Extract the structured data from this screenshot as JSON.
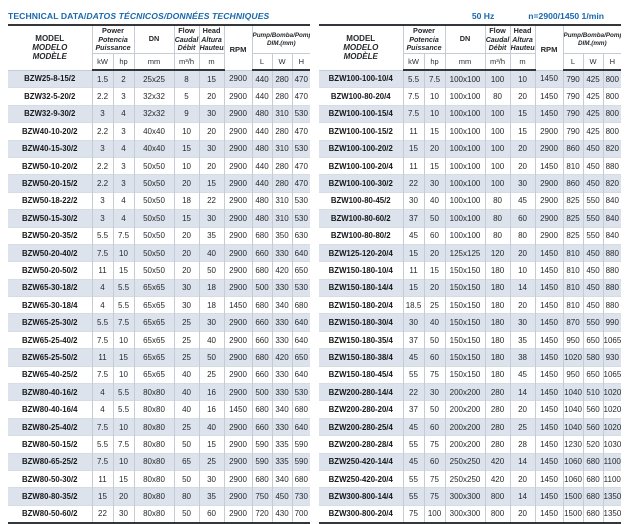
{
  "page": {
    "title_en": "TECHNICAL DATA/",
    "title_intl": "DATOS TÉCNICOS/DONNÉES TECHNIQUES",
    "frequency": "50 Hz",
    "speed": "n=2900/1450 1/min",
    "accent_color": "#1769ae",
    "stripe_color": "#dce3ec"
  },
  "header": {
    "model": [
      "MODEL",
      "MODELO",
      "MODÈLE"
    ],
    "power": [
      "Power",
      "Potencia",
      "Puissance"
    ],
    "flow": [
      "Flow",
      "Caudal",
      "Débit"
    ],
    "head": [
      "Head",
      "Altura",
      "Hauteur"
    ],
    "dn": "DN",
    "rpm": "RPM",
    "dim": [
      "Pump/Bomba/Pompe",
      "DIM.(mm)"
    ],
    "units": {
      "kw": "kW",
      "hp": "hp",
      "dn": "mm",
      "flow": "m³/h",
      "head": "m",
      "dim_l": "L",
      "dim_w": "W",
      "dim_h": "H"
    }
  },
  "tables": [
    {
      "rows": [
        [
          "BZW25-8-15/2",
          "1.5",
          "2",
          "25x25",
          "8",
          "15",
          "2900",
          "440",
          "280",
          "470"
        ],
        [
          "BZW32-5-20/2",
          "2.2",
          "3",
          "32x32",
          "5",
          "20",
          "2900",
          "440",
          "280",
          "470"
        ],
        [
          "BZW32-9-30/2",
          "3",
          "4",
          "32x32",
          "9",
          "30",
          "2900",
          "480",
          "310",
          "530"
        ],
        [
          "BZW40-10-20/2",
          "2.2",
          "3",
          "40x40",
          "10",
          "20",
          "2900",
          "440",
          "280",
          "470"
        ],
        [
          "BZW40-15-30/2",
          "3",
          "4",
          "40x40",
          "15",
          "30",
          "2900",
          "480",
          "310",
          "530"
        ],
        [
          "BZW50-10-20/2",
          "2.2",
          "3",
          "50x50",
          "10",
          "20",
          "2900",
          "440",
          "280",
          "470"
        ],
        [
          "BZW50-20-15/2",
          "2.2",
          "3",
          "50x50",
          "20",
          "15",
          "2900",
          "440",
          "280",
          "470"
        ],
        [
          "BZW50-18-22/2",
          "3",
          "4",
          "50x50",
          "18",
          "22",
          "2900",
          "480",
          "310",
          "530"
        ],
        [
          "BZW50-15-30/2",
          "3",
          "4",
          "50x50",
          "15",
          "30",
          "2900",
          "480",
          "310",
          "530"
        ],
        [
          "BZW50-20-35/2",
          "5.5",
          "7.5",
          "50x50",
          "20",
          "35",
          "2900",
          "680",
          "350",
          "630"
        ],
        [
          "BZW50-20-40/2",
          "7.5",
          "10",
          "50x50",
          "20",
          "40",
          "2900",
          "660",
          "330",
          "640"
        ],
        [
          "BZW50-20-50/2",
          "11",
          "15",
          "50x50",
          "20",
          "50",
          "2900",
          "680",
          "420",
          "650"
        ],
        [
          "BZW65-30-18/2",
          "4",
          "5.5",
          "65x65",
          "30",
          "18",
          "2900",
          "500",
          "330",
          "530"
        ],
        [
          "BZW65-30-18/4",
          "4",
          "5.5",
          "65x65",
          "30",
          "18",
          "1450",
          "680",
          "340",
          "680"
        ],
        [
          "BZW65-25-30/2",
          "5.5",
          "7.5",
          "65x65",
          "25",
          "30",
          "2900",
          "660",
          "330",
          "640"
        ],
        [
          "BZW65-25-40/2",
          "7.5",
          "10",
          "65x65",
          "25",
          "40",
          "2900",
          "660",
          "330",
          "640"
        ],
        [
          "BZW65-25-50/2",
          "11",
          "15",
          "65x65",
          "25",
          "50",
          "2900",
          "680",
          "420",
          "650"
        ],
        [
          "BZW65-40-25/2",
          "7.5",
          "10",
          "65x65",
          "40",
          "25",
          "2900",
          "660",
          "330",
          "640"
        ],
        [
          "BZW80-40-16/2",
          "4",
          "5.5",
          "80x80",
          "40",
          "16",
          "2900",
          "500",
          "330",
          "530"
        ],
        [
          "BZW80-40-16/4",
          "4",
          "5.5",
          "80x80",
          "40",
          "16",
          "1450",
          "680",
          "340",
          "680"
        ],
        [
          "BZW80-25-40/2",
          "7.5",
          "10",
          "80x80",
          "25",
          "40",
          "2900",
          "660",
          "330",
          "640"
        ],
        [
          "BZW80-50-15/2",
          "5.5",
          "7.5",
          "80x80",
          "50",
          "15",
          "2900",
          "590",
          "335",
          "590"
        ],
        [
          "BZW80-65-25/2",
          "7.5",
          "10",
          "80x80",
          "65",
          "25",
          "2900",
          "590",
          "335",
          "590"
        ],
        [
          "BZW80-50-30/2",
          "11",
          "15",
          "80x80",
          "50",
          "30",
          "2900",
          "680",
          "340",
          "680"
        ],
        [
          "BZW80-80-35/2",
          "15",
          "20",
          "80x80",
          "80",
          "35",
          "2900",
          "750",
          "450",
          "730"
        ],
        [
          "BZW80-50-60/2",
          "22",
          "30",
          "80x80",
          "50",
          "60",
          "2900",
          "720",
          "430",
          "700"
        ]
      ]
    },
    {
      "rows": [
        [
          "BZW100-100-10/4",
          "5.5",
          "7.5",
          "100x100",
          "100",
          "10",
          "1450",
          "790",
          "425",
          "800"
        ],
        [
          "BZW100-80-20/4",
          "7.5",
          "10",
          "100x100",
          "80",
          "20",
          "1450",
          "790",
          "425",
          "800"
        ],
        [
          "BZW100-100-15/4",
          "7.5",
          "10",
          "100x100",
          "100",
          "15",
          "1450",
          "790",
          "425",
          "800"
        ],
        [
          "BZW100-100-15/2",
          "11",
          "15",
          "100x100",
          "100",
          "15",
          "2900",
          "790",
          "425",
          "800"
        ],
        [
          "BZW100-100-20/2",
          "15",
          "20",
          "100x100",
          "100",
          "20",
          "2900",
          "860",
          "450",
          "820"
        ],
        [
          "BZW100-100-20/4",
          "11",
          "15",
          "100x100",
          "100",
          "20",
          "1450",
          "810",
          "450",
          "880"
        ],
        [
          "BZW100-100-30/2",
          "22",
          "30",
          "100x100",
          "100",
          "30",
          "2900",
          "860",
          "450",
          "820"
        ],
        [
          "BZW100-80-45/2",
          "30",
          "40",
          "100x100",
          "80",
          "45",
          "2900",
          "825",
          "550",
          "840"
        ],
        [
          "BZW100-80-60/2",
          "37",
          "50",
          "100x100",
          "80",
          "60",
          "2900",
          "825",
          "550",
          "840"
        ],
        [
          "BZW100-80-80/2",
          "45",
          "60",
          "100x100",
          "80",
          "80",
          "2900",
          "825",
          "550",
          "840"
        ],
        [
          "BZW125-120-20/4",
          "15",
          "20",
          "125x125",
          "120",
          "20",
          "1450",
          "810",
          "450",
          "880"
        ],
        [
          "BZW150-180-10/4",
          "11",
          "15",
          "150x150",
          "180",
          "10",
          "1450",
          "810",
          "450",
          "880"
        ],
        [
          "BZW150-180-14/4",
          "15",
          "20",
          "150x150",
          "180",
          "14",
          "1450",
          "810",
          "450",
          "880"
        ],
        [
          "BZW150-180-20/4",
          "18.5",
          "25",
          "150x150",
          "180",
          "20",
          "1450",
          "810",
          "450",
          "880"
        ],
        [
          "BZW150-180-30/4",
          "30",
          "40",
          "150x150",
          "180",
          "30",
          "1450",
          "870",
          "550",
          "990"
        ],
        [
          "BZW150-180-35/4",
          "37",
          "50",
          "150x150",
          "180",
          "35",
          "1450",
          "950",
          "650",
          "1065"
        ],
        [
          "BZW150-180-38/4",
          "45",
          "60",
          "150x150",
          "180",
          "38",
          "1450",
          "1020",
          "580",
          "930"
        ],
        [
          "BZW150-180-45/4",
          "55",
          "75",
          "150x150",
          "180",
          "45",
          "1450",
          "950",
          "650",
          "1065"
        ],
        [
          "BZW200-280-14/4",
          "22",
          "30",
          "200x200",
          "280",
          "14",
          "1450",
          "1040",
          "510",
          "1020"
        ],
        [
          "BZW200-280-20/4",
          "37",
          "50",
          "200x200",
          "280",
          "20",
          "1450",
          "1040",
          "560",
          "1020"
        ],
        [
          "BZW200-280-25/4",
          "45",
          "60",
          "200x200",
          "280",
          "25",
          "1450",
          "1040",
          "560",
          "1020"
        ],
        [
          "BZW200-280-28/4",
          "55",
          "75",
          "200x200",
          "280",
          "28",
          "1450",
          "1230",
          "520",
          "1030"
        ],
        [
          "BZW250-420-14/4",
          "45",
          "60",
          "250x250",
          "420",
          "14",
          "1450",
          "1060",
          "680",
          "1100"
        ],
        [
          "BZW250-420-20/4",
          "55",
          "75",
          "250x250",
          "420",
          "20",
          "1450",
          "1060",
          "680",
          "1100"
        ],
        [
          "BZW300-800-14/4",
          "55",
          "75",
          "300x300",
          "800",
          "14",
          "1450",
          "1500",
          "680",
          "1350"
        ],
        [
          "BZW300-800-20/4",
          "75",
          "100",
          "300x300",
          "800",
          "20",
          "1450",
          "1500",
          "680",
          "1350"
        ]
      ]
    }
  ]
}
